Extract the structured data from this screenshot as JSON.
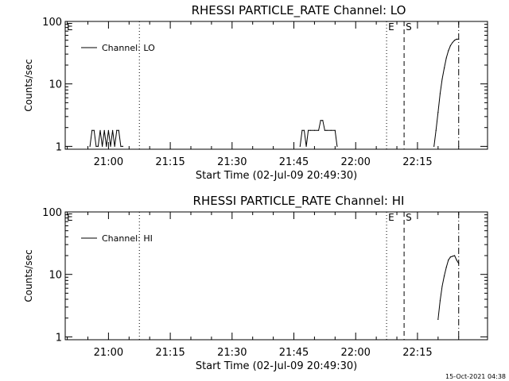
{
  "footer_text": "15-Oct-2021 04:38",
  "chart_data": [
    {
      "type": "line",
      "title": "RHESSI PARTICLE_RATE Channel: LO",
      "xlabel": "Start Time (02-Jul-09 20:49:30)",
      "ylabel": "Counts/sec",
      "yscale": "log",
      "ylim": [
        0.9,
        100
      ],
      "xlim": [
        "20:49:30",
        "22:32:00"
      ],
      "x_ticks": [
        "21:00",
        "21:15",
        "21:30",
        "21:45",
        "22:00",
        "22:15"
      ],
      "y_ticks": [
        "1",
        "10",
        "100"
      ],
      "legend": {
        "entries": [
          "Channel: LO"
        ],
        "placement": "top-left"
      },
      "markers": [
        {
          "label": "E",
          "time": "20:49:30",
          "style": "dotted"
        },
        {
          "label": "",
          "time": "21:07:30",
          "style": "dotted"
        },
        {
          "label": "E",
          "time": "22:07:30",
          "style": "dotted"
        },
        {
          "label": "S",
          "time": "22:11:45",
          "style": "dashed"
        },
        {
          "label": "",
          "time": "22:25:00",
          "style": "dashdot"
        }
      ],
      "series": [
        {
          "name": "Channel: LO",
          "segments": [
            {
              "x": [
                "20:55:30",
                "20:56:00",
                "20:56:30",
                "20:57:00",
                "20:57:30",
                "20:58:00",
                "20:58:30",
                "20:59:00",
                "20:59:30",
                "21:00:00",
                "21:00:30",
                "21:01:00",
                "21:01:30",
                "21:02:00",
                "21:02:30",
                "21:03:00",
                "21:03:30"
              ],
              "y": [
                1,
                1.8,
                1.8,
                1,
                1,
                1.8,
                1,
                1.8,
                1,
                1.8,
                1,
                1.8,
                1,
                1.8,
                1.8,
                1,
                1
              ]
            },
            {
              "x": [
                "21:46:30",
                "21:47:00",
                "21:47:30",
                "21:48:00",
                "21:48:30",
                "21:49:00",
                "21:50:00",
                "21:51:00",
                "21:51:30",
                "21:52:00",
                "21:52:30",
                "21:53:00",
                "21:54:00",
                "21:55:00",
                "21:55:30"
              ],
              "y": [
                1,
                1.8,
                1.8,
                1,
                1.8,
                1.8,
                1.8,
                1.8,
                2.6,
                2.6,
                1.8,
                1.8,
                1.8,
                1.8,
                1
              ]
            },
            {
              "x": [
                "22:19:00",
                "22:19:30",
                "22:20:00",
                "22:20:30",
                "22:21:00",
                "22:21:30",
                "22:22:00",
                "22:22:30",
                "22:23:00",
                "22:23:30",
                "22:24:00",
                "22:24:30",
                "22:25:00"
              ],
              "y": [
                1,
                1.8,
                3.5,
                7,
                12,
                18,
                26,
                34,
                41,
                46,
                50,
                52,
                52
              ]
            }
          ]
        }
      ]
    },
    {
      "type": "line",
      "title": "RHESSI PARTICLE_RATE Channel: HI",
      "xlabel": "Start Time (02-Jul-09 20:49:30)",
      "ylabel": "Counts/sec",
      "yscale": "log",
      "ylim": [
        0.9,
        100
      ],
      "xlim": [
        "20:49:30",
        "22:32:00"
      ],
      "x_ticks": [
        "21:00",
        "21:15",
        "21:30",
        "21:45",
        "22:00",
        "22:15"
      ],
      "y_ticks": [
        "1",
        "10",
        "100"
      ],
      "legend": {
        "entries": [
          "Channel: HI"
        ],
        "placement": "top-left"
      },
      "markers": [
        {
          "label": "E",
          "time": "20:49:30",
          "style": "dotted"
        },
        {
          "label": "",
          "time": "21:07:30",
          "style": "dotted"
        },
        {
          "label": "E",
          "time": "22:07:30",
          "style": "dotted"
        },
        {
          "label": "S",
          "time": "22:11:45",
          "style": "dashed"
        },
        {
          "label": "",
          "time": "22:25:00",
          "style": "dashdot"
        }
      ],
      "series": [
        {
          "name": "Channel: HI",
          "segments": [
            {
              "x": [
                "22:20:00",
                "22:20:30",
                "22:21:00",
                "22:21:30",
                "22:22:00",
                "22:22:30",
                "22:23:00",
                "22:23:30",
                "22:24:00",
                "22:24:30",
                "22:25:00"
              ],
              "y": [
                1.9,
                3.8,
                6.5,
                9.5,
                13,
                17,
                19,
                19.5,
                20,
                17,
                15
              ]
            }
          ]
        }
      ]
    }
  ]
}
